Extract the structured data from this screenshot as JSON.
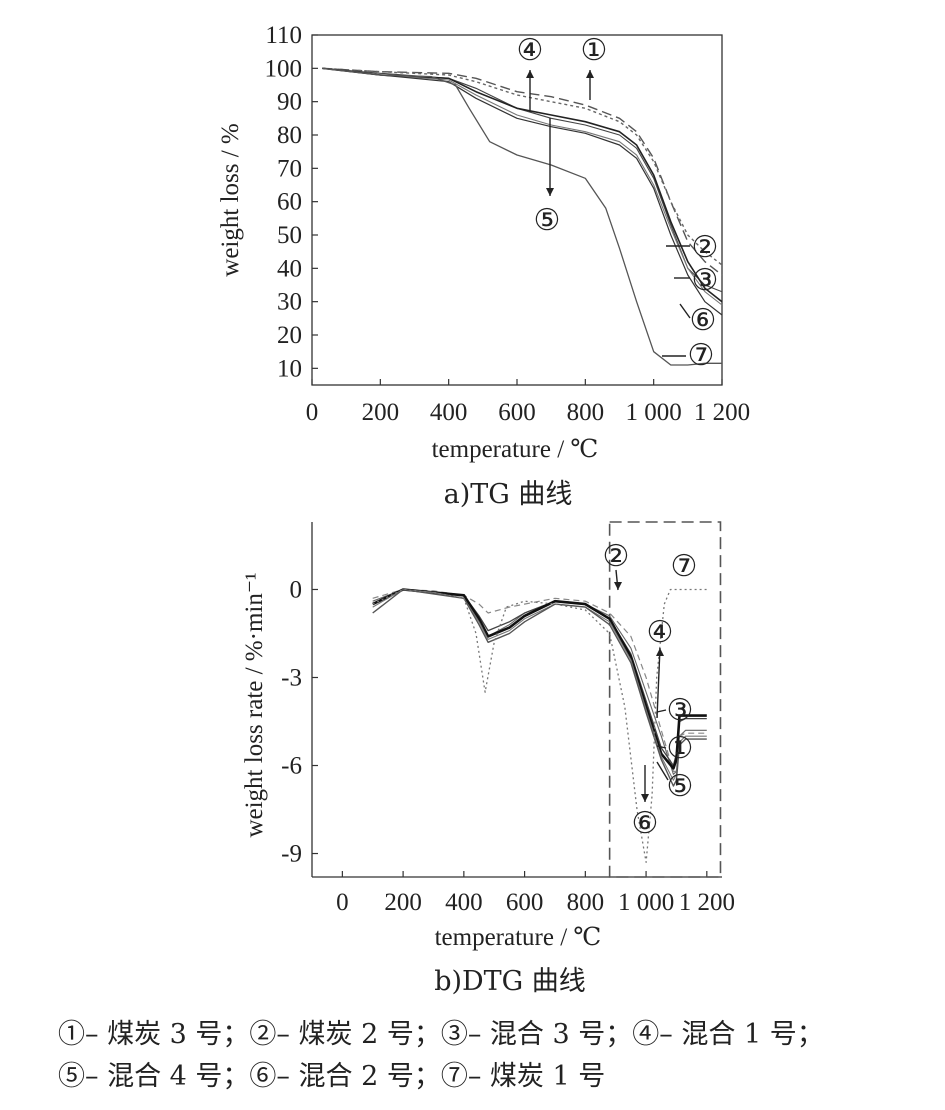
{
  "chart_data": [
    {
      "type": "line",
      "caption": "a)TG 曲线",
      "xlabel": "temperature / ℃",
      "ylabel": "weight loss / %",
      "xlim": [
        0,
        1200
      ],
      "ylim": [
        5,
        110
      ],
      "x_ticks": [
        "0",
        "200",
        "400",
        "600",
        "800",
        "1 000",
        "1 200"
      ],
      "y_ticks": [
        "10",
        "20",
        "30",
        "40",
        "50",
        "60",
        "70",
        "80",
        "90",
        "100",
        "110"
      ],
      "series": [
        {
          "label": "①",
          "x": [
            30,
            200,
            400,
            480,
            600,
            700,
            800,
            900,
            950,
            1000,
            1050,
            1100,
            1150,
            1200
          ],
          "y": [
            100,
            99,
            98.5,
            97,
            93,
            91.5,
            89,
            85,
            81,
            73,
            60,
            48,
            42,
            38
          ]
        },
        {
          "label": "②",
          "x": [
            30,
            200,
            400,
            480,
            600,
            700,
            800,
            900,
            950,
            1000,
            1050,
            1100,
            1150,
            1200
          ],
          "y": [
            100,
            99,
            98,
            96,
            92,
            90,
            88,
            84,
            80,
            72,
            60,
            50,
            45,
            41
          ]
        },
        {
          "label": "③",
          "x": [
            30,
            200,
            400,
            480,
            600,
            700,
            800,
            900,
            950,
            1000,
            1050,
            1100,
            1150,
            1200
          ],
          "y": [
            100,
            98.5,
            97,
            94,
            88,
            85,
            83,
            80,
            76,
            67,
            53,
            40,
            35,
            33
          ]
        },
        {
          "label": "④",
          "x": [
            30,
            200,
            400,
            480,
            600,
            700,
            800,
            900,
            950,
            1000,
            1050,
            1100,
            1150,
            1200
          ],
          "y": [
            100,
            98,
            97,
            93,
            88,
            86,
            84,
            81,
            77,
            68,
            54,
            42,
            34,
            30
          ]
        },
        {
          "label": "⑤",
          "x": [
            30,
            200,
            400,
            480,
            600,
            700,
            800,
            900,
            950,
            1000,
            1050,
            1100,
            1150,
            1200
          ],
          "y": [
            100,
            98,
            96.5,
            92,
            86,
            83,
            81,
            78,
            74,
            65,
            52,
            40,
            33,
            29
          ]
        },
        {
          "label": "⑥",
          "x": [
            30,
            200,
            400,
            480,
            600,
            700,
            800,
            900,
            950,
            1000,
            1050,
            1100,
            1150,
            1200
          ],
          "y": [
            100,
            98,
            96,
            91,
            85,
            82.5,
            80.5,
            77,
            73,
            64,
            50,
            38,
            30,
            26
          ]
        },
        {
          "label": "⑦",
          "x": [
            30,
            200,
            350,
            420,
            460,
            520,
            600,
            700,
            800,
            860,
            900,
            950,
            1000,
            1050,
            1080,
            1100,
            1150,
            1200
          ],
          "y": [
            100,
            98,
            97.5,
            95,
            88,
            78,
            74,
            71,
            67,
            58,
            46,
            30,
            15,
            11,
            11,
            11,
            11.5,
            11.5
          ]
        }
      ],
      "annotations": [
        "④",
        "①",
        "⑤",
        "②",
        "③",
        "⑥",
        "⑦"
      ]
    },
    {
      "type": "line",
      "caption": "b)DTG 曲线",
      "xlabel": "temperature / ℃",
      "ylabel": "weight loss rate / %·min⁻¹",
      "xlim": [
        -100,
        1250
      ],
      "ylim": [
        -9.8,
        2.3
      ],
      "x_ticks": [
        "0",
        "200",
        "400",
        "600",
        "800",
        "1 000",
        "1 200"
      ],
      "y_ticks": [
        "0",
        "-3",
        "-6",
        "-9"
      ],
      "highlight_box": {
        "x": [
          880,
          1245
        ],
        "y": [
          -9.8,
          2.3
        ]
      },
      "series": [
        {
          "label": "①",
          "x": [
            100,
            200,
            300,
            400,
            450,
            480,
            550,
            600,
            700,
            800,
            880,
            950,
            1000,
            1050,
            1090,
            1100,
            1110,
            1130,
            1200
          ],
          "y": [
            -0.4,
            0,
            -0.1,
            -0.2,
            -1.0,
            -1.6,
            -1.2,
            -0.8,
            -0.4,
            -0.5,
            -0.9,
            -2.0,
            -3.5,
            -5.0,
            -6.3,
            -6.2,
            -5.0,
            -4.8,
            -4.8
          ]
        },
        {
          "label": "②",
          "x": [
            100,
            200,
            300,
            400,
            450,
            480,
            550,
            600,
            700,
            800,
            880,
            950,
            1000,
            1050,
            1090,
            1100,
            1110,
            1130,
            1200
          ],
          "y": [
            -0.3,
            0,
            -0.05,
            -0.2,
            -0.5,
            -0.8,
            -0.6,
            -0.5,
            -0.3,
            -0.4,
            -0.8,
            -1.6,
            -3.0,
            -4.8,
            -6.2,
            -6.2,
            -5.0,
            -4.9,
            -4.9
          ]
        },
        {
          "label": "③",
          "x": [
            100,
            200,
            300,
            400,
            450,
            480,
            550,
            600,
            700,
            800,
            880,
            950,
            1000,
            1050,
            1090,
            1100,
            1110,
            1130,
            1200
          ],
          "y": [
            -0.5,
            0,
            -0.1,
            -0.2,
            -0.9,
            -1.4,
            -1.1,
            -0.8,
            -0.4,
            -0.5,
            -1.0,
            -2.2,
            -3.8,
            -5.4,
            -6.0,
            -5.6,
            -4.5,
            -4.4,
            -4.4
          ]
        },
        {
          "label": "④",
          "x": [
            100,
            200,
            300,
            400,
            450,
            480,
            550,
            600,
            700,
            800,
            880,
            950,
            1000,
            1050,
            1090,
            1100,
            1110,
            1130,
            1200
          ],
          "y": [
            -0.5,
            0,
            -0.1,
            -0.2,
            -1.0,
            -1.6,
            -1.3,
            -0.9,
            -0.4,
            -0.5,
            -1.0,
            -2.3,
            -4.0,
            -5.6,
            -6.1,
            -5.8,
            -4.3,
            -4.3,
            -4.3
          ]
        },
        {
          "label": "⑤",
          "x": [
            100,
            200,
            300,
            400,
            450,
            480,
            550,
            600,
            700,
            800,
            880,
            950,
            1000,
            1050,
            1090,
            1100,
            1110,
            1130,
            1200
          ],
          "y": [
            -0.6,
            0,
            -0.1,
            -0.3,
            -1.1,
            -1.7,
            -1.4,
            -1.0,
            -0.5,
            -0.6,
            -1.1,
            -2.4,
            -4.1,
            -5.7,
            -6.5,
            -6.3,
            -5.2,
            -5.0,
            -5.0
          ]
        },
        {
          "label": "⑥",
          "x": [
            100,
            200,
            300,
            400,
            450,
            480,
            550,
            600,
            700,
            800,
            880,
            950,
            1000,
            1050,
            1090,
            1100,
            1110,
            1130,
            1200
          ],
          "y": [
            -0.8,
            0,
            -0.15,
            -0.3,
            -1.2,
            -1.8,
            -1.5,
            -1.1,
            -0.5,
            -0.6,
            -1.2,
            -2.5,
            -4.2,
            -5.8,
            -6.7,
            -6.5,
            -5.3,
            -5.1,
            -5.1
          ]
        },
        {
          "label": "⑦",
          "x": [
            100,
            200,
            300,
            400,
            440,
            470,
            500,
            540,
            600,
            700,
            800,
            880,
            930,
            970,
            1000,
            1020,
            1035,
            1060,
            1080,
            1100,
            1200
          ],
          "y": [
            -0.5,
            0,
            -0.1,
            -0.3,
            -1.5,
            -3.5,
            -1.8,
            -0.6,
            -0.4,
            -0.5,
            -0.7,
            -1.5,
            -4.0,
            -7.5,
            -9.3,
            -7.0,
            -3.0,
            -0.5,
            0,
            0,
            0
          ]
        }
      ],
      "annotations": [
        "②",
        "⑦",
        "④",
        "③",
        "①",
        "⑤",
        "⑥"
      ]
    }
  ],
  "legend_lines": [
    "①– 煤炭 3 号；②– 煤炭 2 号；③– 混合 3 号；④– 混合 1 号；",
    "⑤– 混合 4 号；⑥– 混合 2 号；⑦– 煤炭 1 号"
  ]
}
